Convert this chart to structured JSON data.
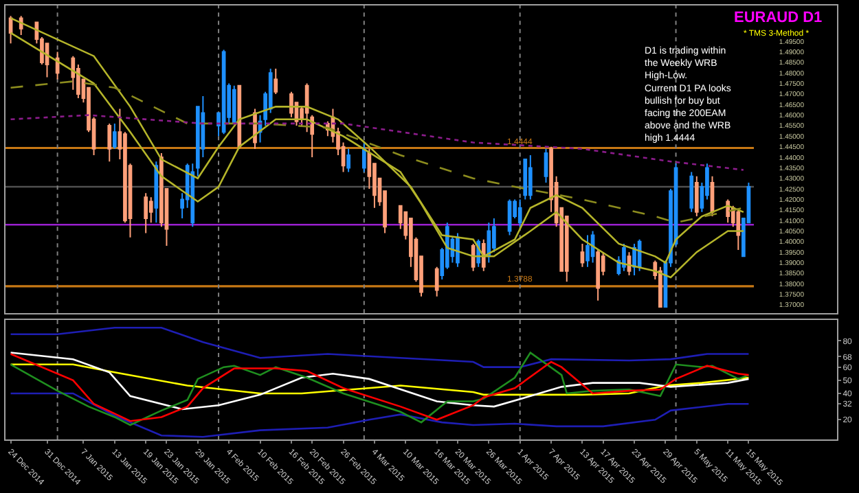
{
  "chart_data": [
    {
      "type": "candlestick",
      "title": "EURAUD D1",
      "subtitle": "* TMS 3-Method *",
      "annotations": [
        "D1 is trading within\nthe Weekly WRB\nHigh-Low.\nCurrent D1 PA looks\nbullish for buy but\nfacing the 200EAM\nabove and the WRB\nhigh 1.4444"
      ],
      "x": [
        "2014-12-24",
        "2014-12-26",
        "2014-12-29",
        "2014-12-30",
        "2014-12-31",
        "2015-01-02",
        "2015-01-05",
        "2015-01-06",
        "2015-01-07",
        "2015-01-08",
        "2015-01-09",
        "2015-01-12",
        "2015-01-13",
        "2015-01-14",
        "2015-01-15",
        "2015-01-16",
        "2015-01-19",
        "2015-01-20",
        "2015-01-21",
        "2015-01-22",
        "2015-01-23",
        "2015-01-26",
        "2015-01-27",
        "2015-01-28",
        "2015-01-29",
        "2015-01-30",
        "2015-02-02",
        "2015-02-03",
        "2015-02-04",
        "2015-02-05",
        "2015-02-06",
        "2015-02-09",
        "2015-02-10",
        "2015-02-11",
        "2015-02-12",
        "2015-02-13",
        "2015-02-16",
        "2015-02-17",
        "2015-02-18",
        "2015-02-19",
        "2015-02-20",
        "2015-02-23",
        "2015-02-24",
        "2015-02-25",
        "2015-02-26",
        "2015-02-27",
        "2015-03-02",
        "2015-03-03",
        "2015-03-04",
        "2015-03-05",
        "2015-03-06",
        "2015-03-09",
        "2015-03-10",
        "2015-03-11",
        "2015-03-12",
        "2015-03-13",
        "2015-03-16",
        "2015-03-17",
        "2015-03-18",
        "2015-03-19",
        "2015-03-20",
        "2015-03-23",
        "2015-03-24",
        "2015-03-25",
        "2015-03-26",
        "2015-03-27",
        "2015-03-30",
        "2015-03-31",
        "2015-04-01",
        "2015-04-02",
        "2015-04-03",
        "2015-04-06",
        "2015-04-07",
        "2015-04-08",
        "2015-04-09",
        "2015-04-10",
        "2015-04-13",
        "2015-04-14",
        "2015-04-15",
        "2015-04-16",
        "2015-04-17",
        "2015-04-20",
        "2015-04-21",
        "2015-04-22",
        "2015-04-23",
        "2015-04-24",
        "2015-04-27",
        "2015-04-28",
        "2015-04-29",
        "2015-04-30",
        "2015-05-01",
        "2015-05-04",
        "2015-05-05",
        "2015-05-06",
        "2015-05-07",
        "2015-05-08",
        "2015-05-11",
        "2015-05-12",
        "2015-05-13",
        "2015-05-14",
        "2015-05-15"
      ],
      "ohlc": [
        [
          1.506,
          1.507,
          1.494,
          1.499
        ],
        [
          1.506,
          1.507,
          1.498,
          1.501
        ],
        [
          1.504,
          1.504,
          1.494,
          1.496
        ],
        [
          1.496,
          1.497,
          1.484,
          1.485
        ],
        [
          1.494,
          1.494,
          1.478,
          1.484
        ],
        [
          1.487,
          1.49,
          1.477,
          1.48
        ],
        [
          1.487,
          1.488,
          1.472,
          1.478
        ],
        [
          1.482,
          1.484,
          1.468,
          1.47
        ],
        [
          1.477,
          1.477,
          1.466,
          1.468
        ],
        [
          1.473,
          1.473,
          1.452,
          1.453
        ],
        [
          1.458,
          1.459,
          1.441,
          1.444
        ],
        [
          1.455,
          1.456,
          1.438,
          1.444
        ],
        [
          1.445,
          1.456,
          1.444,
          1.452
        ],
        [
          1.452,
          1.463,
          1.439,
          1.444
        ],
        [
          1.451,
          1.452,
          1.409,
          1.41
        ],
        [
          1.436,
          1.437,
          1.402,
          1.411
        ],
        [
          1.421,
          1.423,
          1.404,
          1.411
        ],
        [
          1.419,
          1.421,
          1.409,
          1.414
        ],
        [
          1.416,
          1.438,
          1.409,
          1.436
        ],
        [
          1.44,
          1.442,
          1.407,
          1.409
        ],
        [
          1.425,
          1.425,
          1.398,
          1.406
        ],
        [
          1.416,
          1.423,
          1.411,
          1.42
        ],
        [
          1.42,
          1.437,
          1.416,
          1.436
        ],
        [
          1.409,
          1.437,
          1.407,
          1.433
        ],
        [
          1.435,
          1.464,
          1.431,
          1.464
        ],
        [
          1.444,
          1.469,
          1.44,
          1.461
        ],
        [
          1.455,
          1.461,
          1.45,
          1.461
        ],
        [
          1.452,
          1.491,
          1.451,
          1.49
        ],
        [
          1.459,
          1.475,
          1.456,
          1.474
        ],
        [
          1.456,
          1.474,
          1.456,
          1.472
        ],
        [
          1.474,
          1.474,
          1.444,
          1.445
        ],
        [
          1.461,
          1.463,
          1.444,
          1.447
        ],
        [
          1.452,
          1.46,
          1.447,
          1.457
        ],
        [
          1.458,
          1.471,
          1.455,
          1.47
        ],
        [
          1.463,
          1.482,
          1.461,
          1.48
        ],
        [
          1.477,
          1.482,
          1.47,
          1.471
        ],
        [
          1.47,
          1.471,
          1.459,
          1.461
        ],
        [
          1.466,
          1.466,
          1.455,
          1.457
        ],
        [
          1.463,
          1.464,
          1.455,
          1.458
        ],
        [
          1.474,
          1.475,
          1.452,
          1.461
        ],
        [
          1.459,
          1.46,
          1.44,
          1.451
        ],
        [
          1.456,
          1.457,
          1.45,
          1.453
        ],
        [
          1.459,
          1.463,
          1.447,
          1.45
        ],
        [
          1.452,
          1.454,
          1.441,
          1.444
        ],
        [
          1.445,
          1.447,
          1.433,
          1.436
        ],
        [
          1.435,
          1.444,
          1.433,
          1.441
        ],
        [
          1.435,
          1.447,
          1.433,
          1.444
        ],
        [
          1.442,
          1.444,
          1.425,
          1.431
        ],
        [
          1.437,
          1.437,
          1.416,
          1.422
        ],
        [
          1.43,
          1.43,
          1.417,
          1.419
        ],
        [
          1.424,
          1.424,
          1.404,
          1.407
        ],
        [
          1.417,
          1.417,
          1.406,
          1.409
        ],
        [
          1.414,
          1.414,
          1.401,
          1.403
        ],
        [
          1.411,
          1.411,
          1.388,
          1.393
        ],
        [
          1.401,
          1.402,
          1.381,
          1.382
        ],
        [
          1.393,
          1.393,
          1.374,
          1.376
        ],
        [
          1.387,
          1.388,
          1.374,
          1.377
        ],
        [
          1.384,
          1.397,
          1.382,
          1.396
        ],
        [
          1.388,
          1.409,
          1.387,
          1.407
        ],
        [
          1.393,
          1.402,
          1.39,
          1.401
        ],
        [
          1.39,
          1.404,
          1.388,
          1.402
        ],
        [
          1.398,
          1.399,
          1.386,
          1.388
        ],
        [
          1.39,
          1.401,
          1.388,
          1.4
        ],
        [
          1.399,
          1.401,
          1.386,
          1.388
        ],
        [
          1.393,
          1.409,
          1.39,
          1.405
        ],
        [
          1.397,
          1.411,
          1.395,
          1.407
        ],
        [
          1.405,
          1.42,
          1.403,
          1.419
        ],
        [
          1.412,
          1.42,
          1.411,
          1.419
        ],
        [
          1.409,
          1.42,
          1.407,
          1.416
        ],
        [
          1.422,
          1.439,
          1.42,
          1.439
        ],
        [
          1.422,
          1.441,
          1.42,
          1.435
        ],
        [
          1.431,
          1.444,
          1.428,
          1.442
        ],
        [
          1.444,
          1.445,
          1.414,
          1.42
        ],
        [
          1.428,
          1.431,
          1.407,
          1.409
        ],
        [
          1.416,
          1.416,
          1.386,
          1.386
        ],
        [
          1.412,
          1.412,
          1.381,
          1.386
        ],
        [
          1.395,
          1.399,
          1.388,
          1.39
        ],
        [
          1.391,
          1.403,
          1.388,
          1.398
        ],
        [
          1.393,
          1.405,
          1.39,
          1.403
        ],
        [
          1.395,
          1.396,
          1.372,
          1.378
        ],
        [
          1.393,
          1.395,
          1.384,
          1.386
        ],
        [
          1.385,
          1.393,
          1.384,
          1.391
        ],
        [
          1.388,
          1.399,
          1.386,
          1.397
        ],
        [
          1.393,
          1.395,
          1.384,
          1.386
        ],
        [
          1.388,
          1.399,
          1.384,
          1.397
        ],
        [
          1.388,
          1.401,
          1.386,
          1.4
        ],
        [
          1.39,
          1.391,
          1.382,
          1.384
        ],
        [
          1.386,
          1.388,
          1.369,
          1.369
        ],
        [
          1.369,
          1.391,
          1.369,
          1.39
        ],
        [
          1.39,
          1.425,
          1.388,
          1.424
        ],
        [
          1.399,
          1.437,
          1.398,
          1.435
        ],
        [
          1.416,
          1.433,
          1.414,
          1.431
        ],
        [
          1.428,
          1.431,
          1.412,
          1.414
        ],
        [
          1.416,
          1.428,
          1.414,
          1.426
        ],
        [
          1.422,
          1.437,
          1.42,
          1.435
        ],
        [
          1.428,
          1.431,
          1.412,
          1.414
        ],
        [
          1.419,
          1.42,
          1.409,
          1.412
        ],
        [
          1.416,
          1.417,
          1.407,
          1.409
        ],
        [
          1.414,
          1.415,
          1.396,
          1.403
        ],
        [
          1.393,
          1.411,
          1.393,
          1.411
        ],
        [
          1.409,
          1.428,
          1.409,
          1.426
        ]
      ],
      "colors": [
        "#ffa07a",
        "#ffa07a",
        "#ffa07a",
        "#ffa07a",
        "#ffa07a",
        "#ffa07a",
        "#ffa07a",
        "#ffa07a",
        "#ffa07a",
        "#ffa07a",
        "#ffa07a",
        "#ffa07a",
        "#1e90ff",
        "#ffa07a",
        "#ffa07a",
        "#ffa07a",
        "#ffa07a",
        "#ffa07a",
        "#1e90ff",
        "#ffa07a",
        "#ffa07a",
        "#1e90ff",
        "#1e90ff",
        "#1e90ff",
        "#1e90ff",
        "#1e90ff",
        "#1e90ff",
        "#1e90ff",
        "#1e90ff",
        "#1e90ff",
        "#ffa07a",
        "#ffa07a",
        "#1e90ff",
        "#1e90ff",
        "#1e90ff",
        "#ffa07a",
        "#ffa07a",
        "#ffa07a",
        "#ffa07a",
        "#ffa07a",
        "#ffa07a",
        "#ffa07a",
        "#ffa07a",
        "#ffa07a",
        "#ffa07a",
        "#1e90ff",
        "#1e90ff",
        "#ffa07a",
        "#ffa07a",
        "#ffa07a",
        "#ffa07a",
        "#ffa07a",
        "#ffa07a",
        "#ffa07a",
        "#ffa07a",
        "#ffa07a",
        "#ffa07a",
        "#1e90ff",
        "#1e90ff",
        "#1e90ff",
        "#1e90ff",
        "#ffa07a",
        "#1e90ff",
        "#ffa07a",
        "#1e90ff",
        "#1e90ff",
        "#1e90ff",
        "#1e90ff",
        "#1e90ff",
        "#1e90ff",
        "#1e90ff",
        "#1e90ff",
        "#ffa07a",
        "#ffa07a",
        "#ffa07a",
        "#ffa07a",
        "#ffa07a",
        "#1e90ff",
        "#1e90ff",
        "#ffa07a",
        "#ffa07a",
        "#1e90ff",
        "#1e90ff",
        "#ffa07a",
        "#1e90ff",
        "#1e90ff",
        "#ffa07a",
        "#ffa07a",
        "#1e90ff",
        "#1e90ff",
        "#1e90ff",
        "#1e90ff",
        "#ffa07a",
        "#1e90ff",
        "#1e90ff",
        "#ffa07a",
        "#ffa07a",
        "#ffa07a",
        "#ffa07a",
        "#1e90ff",
        "#1e90ff"
      ],
      "series": [
        {
          "type": "line",
          "color": "#b5b52a",
          "line_style": "solid",
          "x": [
            "2014-12-24",
            "2015-01-09",
            "2015-01-16",
            "2015-01-22",
            "2015-01-29",
            "2015-02-02",
            "2015-02-06",
            "2015-02-13",
            "2015-02-19",
            "2015-02-25",
            "2015-03-03",
            "2015-03-11",
            "2015-03-17",
            "2015-03-23",
            "2015-03-25",
            "2015-03-31",
            "2015-04-03",
            "2015-04-08",
            "2015-04-13",
            "2015-04-20",
            "2015-04-27",
            "2015-04-29",
            "2015-05-01",
            "2015-05-06",
            "2015-05-11",
            "2015-05-14"
          ],
          "values": [
            1.506,
            1.488,
            1.464,
            1.439,
            1.43,
            1.445,
            1.458,
            1.464,
            1.464,
            1.458,
            1.445,
            1.426,
            1.403,
            1.401,
            1.393,
            1.401,
            1.416,
            1.422,
            1.416,
            1.399,
            1.393,
            1.39,
            1.401,
            1.412,
            1.417,
            1.414
          ]
        },
        {
          "type": "line",
          "color": "#b5b52a",
          "line_style": "solid",
          "x": [
            "2014-12-24",
            "2015-01-09",
            "2015-01-16",
            "2015-01-22",
            "2015-01-29",
            "2015-02-02",
            "2015-02-06",
            "2015-02-13",
            "2015-02-19",
            "2015-02-26",
            "2015-03-09",
            "2015-03-13",
            "2015-03-18",
            "2015-03-23",
            "2015-03-27",
            "2015-04-03",
            "2015-04-08",
            "2015-04-13",
            "2015-04-20",
            "2015-04-27",
            "2015-04-30",
            "2015-05-05",
            "2015-05-11",
            "2015-05-14"
          ],
          "values": [
            1.499,
            1.475,
            1.452,
            1.431,
            1.419,
            1.426,
            1.445,
            1.458,
            1.458,
            1.45,
            1.433,
            1.418,
            1.397,
            1.393,
            1.393,
            1.405,
            1.414,
            1.401,
            1.39,
            1.386,
            1.383,
            1.395,
            1.405,
            1.405
          ]
        },
        {
          "type": "line",
          "color": "#8c8c1e",
          "line_style": "dashed",
          "x": [
            "2014-12-24",
            "2015-01-05",
            "2015-01-13",
            "2015-01-27",
            "2015-02-10",
            "2015-02-23",
            "2015-03-09",
            "2015-03-23",
            "2015-03-31",
            "2015-04-13",
            "2015-04-27",
            "2015-05-01",
            "2015-05-14"
          ],
          "values": [
            1.473,
            1.476,
            1.473,
            1.456,
            1.456,
            1.454,
            1.441,
            1.43,
            1.426,
            1.42,
            1.412,
            1.409,
            1.416
          ]
        },
        {
          "type": "line",
          "color": "#8b1c8b",
          "line_style": "dotted",
          "x": [
            "2014-12-24",
            "2015-01-08",
            "2015-01-30",
            "2015-02-26",
            "2015-03-23",
            "2015-04-13",
            "2015-04-30",
            "2015-05-14"
          ],
          "values": [
            1.458,
            1.46,
            1.456,
            1.456,
            1.447,
            1.444,
            1.438,
            1.434
          ]
        }
      ],
      "xlim": [
        "2014-12-23",
        "2015-06-01"
      ],
      "ylim": [
        1.366,
        1.512
      ],
      "yticks": [
        {
          "value": 1.495,
          "label": "1.49500"
        },
        {
          "value": 1.49,
          "label": "1.49000"
        },
        {
          "value": 1.485,
          "label": "1.48500"
        },
        {
          "value": 1.48,
          "label": "1.48000"
        },
        {
          "value": 1.475,
          "label": "1.47500"
        },
        {
          "value": 1.47,
          "label": "1.47000"
        },
        {
          "value": 1.465,
          "label": "1.46500"
        },
        {
          "value": 1.46,
          "label": "1.46000"
        },
        {
          "value": 1.455,
          "label": "1.45500"
        },
        {
          "value": 1.45,
          "label": "1.45000"
        },
        {
          "value": 1.445,
          "label": "1.44500"
        },
        {
          "value": 1.44,
          "label": "1.44000"
        },
        {
          "value": 1.435,
          "label": "1.43500"
        },
        {
          "value": 1.43,
          "label": "1.43000"
        },
        {
          "value": 1.425,
          "label": "1.42500"
        },
        {
          "value": 1.42,
          "label": "1.42000"
        },
        {
          "value": 1.415,
          "label": "1.41500"
        },
        {
          "value": 1.41,
          "label": "1.41000"
        },
        {
          "value": 1.405,
          "label": "1.40500"
        },
        {
          "value": 1.4,
          "label": "1.40000"
        },
        {
          "value": 1.395,
          "label": "1.39500"
        },
        {
          "value": 1.39,
          "label": "1.39000"
        },
        {
          "value": 1.385,
          "label": "1.38500"
        },
        {
          "value": 1.38,
          "label": "1.38000"
        },
        {
          "value": 1.375,
          "label": "1.37500"
        },
        {
          "value": 1.37,
          "label": "1.37000"
        }
      ],
      "tick_labels": "y",
      "ref_lines": [
        {
          "axis": "y",
          "value": 1.4444,
          "label": "1.4444",
          "color": "#c87814"
        },
        {
          "axis": "y",
          "value": 1.3788,
          "label": "1.3788",
          "color": "#c87814"
        },
        {
          "axis": "y",
          "value": 1.408,
          "color": "#9a1fd0"
        },
        {
          "axis": "y",
          "value": 1.426,
          "color": "#505050"
        },
        {
          "axis": "x",
          "value": "2015-01-02",
          "color": "#808080",
          "line_style": "dotted"
        },
        {
          "axis": "x",
          "value": "2015-02-02",
          "color": "#808080",
          "line_style": "dotted"
        },
        {
          "axis": "x",
          "value": "2015-03-02",
          "color": "#808080",
          "line_style": "dotted"
        },
        {
          "axis": "x",
          "value": "2015-04-01",
          "color": "#808080",
          "line_style": "dotted"
        },
        {
          "axis": "x",
          "value": "2015-05-01",
          "color": "#808080",
          "line_style": "dotted"
        }
      ]
    },
    {
      "type": "line",
      "xlim": [
        "2014-12-23",
        "2015-06-01"
      ],
      "ylim": [
        5,
        96
      ],
      "yticks": [
        20,
        32,
        40,
        50,
        60,
        68,
        80
      ],
      "xticks": [
        {
          "value": "2014-12-24",
          "label": "24 Dec 2014"
        },
        {
          "value": "2014-12-31",
          "label": "31 Dec 2014"
        },
        {
          "value": "2015-01-07",
          "label": "7 Jan 2015"
        },
        {
          "value": "2015-01-13",
          "label": "13 Jan 2015"
        },
        {
          "value": "2015-01-19",
          "label": "19 Jan 2015"
        },
        {
          "value": "2015-01-23",
          "label": "23 Jan 2015"
        },
        {
          "value": "2015-01-29",
          "label": "29 Jan 2015"
        },
        {
          "value": "2015-02-04",
          "label": "4 Feb 2015"
        },
        {
          "value": "2015-02-10",
          "label": "10 Feb 2015"
        },
        {
          "value": "2015-02-16",
          "label": "16 Feb 2015"
        },
        {
          "value": "2015-02-20",
          "label": "20 Feb 2015"
        },
        {
          "value": "2015-02-26",
          "label": "26 Feb 2015"
        },
        {
          "value": "2015-03-04",
          "label": "4 Mar 2015"
        },
        {
          "value": "2015-03-10",
          "label": "10 Mar 2015"
        },
        {
          "value": "2015-03-16",
          "label": "16 Mar 2015"
        },
        {
          "value": "2015-03-20",
          "label": "20 Mar 2015"
        },
        {
          "value": "2015-03-26",
          "label": "26 Mar 2015"
        },
        {
          "value": "2015-04-01",
          "label": "1 Apr 2015"
        },
        {
          "value": "2015-04-07",
          "label": "7 Apr 2015"
        },
        {
          "value": "2015-04-13",
          "label": "13 Apr 2015"
        },
        {
          "value": "2015-04-17",
          "label": "17 Apr 2015"
        },
        {
          "value": "2015-04-23",
          "label": "23 Apr 2015"
        },
        {
          "value": "2015-04-29",
          "label": "29 Apr 2015"
        },
        {
          "value": "2015-05-05",
          "label": "5 May 2015"
        },
        {
          "value": "2015-05-11",
          "label": "11 May 2015"
        },
        {
          "value": "2015-05-15",
          "label": "15 May 2015"
        }
      ],
      "series": [
        {
          "color": "#1e1eb4",
          "x": [
            "2014-12-24",
            "2015-01-02",
            "2015-01-13",
            "2015-01-22",
            "2015-01-30",
            "2015-02-10",
            "2015-02-23",
            "2015-03-09",
            "2015-03-23",
            "2015-03-25",
            "2015-04-01",
            "2015-04-07",
            "2015-04-22",
            "2015-04-30",
            "2015-05-07",
            "2015-05-15"
          ],
          "values": [
            85,
            85,
            90,
            90,
            79,
            67,
            70,
            67,
            64,
            60,
            60,
            66,
            65,
            66,
            70,
            70
          ]
        },
        {
          "color": "#1e1eb4",
          "x": [
            "2014-12-24",
            "2015-01-05",
            "2015-01-13",
            "2015-01-22",
            "2015-01-30",
            "2015-02-10",
            "2015-02-23",
            "2015-03-03",
            "2015-03-09",
            "2015-03-17",
            "2015-03-23",
            "2015-03-31",
            "2015-04-08",
            "2015-04-17",
            "2015-04-27",
            "2015-04-30",
            "2015-05-11",
            "2015-05-15"
          ],
          "values": [
            40,
            40,
            23,
            8,
            7,
            12,
            14,
            20,
            24,
            18,
            16,
            17,
            15,
            15,
            20,
            27,
            32,
            32
          ]
        },
        {
          "color": "#ffff00",
          "x": [
            "2014-12-24",
            "2015-01-05",
            "2015-01-13",
            "2015-01-27",
            "2015-02-10",
            "2015-02-18",
            "2015-03-09",
            "2015-03-23",
            "2015-03-25",
            "2015-04-03",
            "2015-04-13",
            "2015-04-22",
            "2015-04-29",
            "2015-05-06",
            "2015-05-15"
          ],
          "values": [
            62,
            62,
            56,
            46,
            40,
            40,
            46,
            41,
            39,
            39,
            39,
            40,
            46,
            48,
            52
          ]
        },
        {
          "color": "#ffffff",
          "x": [
            "2014-12-24",
            "2015-01-05",
            "2015-01-12",
            "2015-01-16",
            "2015-01-26",
            "2015-02-02",
            "2015-02-10",
            "2015-02-18",
            "2015-02-24",
            "2015-03-03",
            "2015-03-16",
            "2015-03-23",
            "2015-03-27",
            "2015-04-03",
            "2015-04-09",
            "2015-04-15",
            "2015-04-24",
            "2015-04-30",
            "2015-05-11",
            "2015-05-15"
          ],
          "values": [
            71,
            66,
            56,
            38,
            28,
            31,
            39,
            52,
            55,
            51,
            34,
            31,
            30,
            38,
            45,
            48,
            48,
            45,
            48,
            51
          ]
        },
        {
          "color": "#1f8f1f",
          "x": [
            "2014-12-24",
            "2015-01-02",
            "2015-01-08",
            "2015-01-13",
            "2015-01-16",
            "2015-01-22",
            "2015-01-27",
            "2015-01-29",
            "2015-02-03",
            "2015-02-05",
            "2015-02-10",
            "2015-02-13",
            "2015-02-19",
            "2015-02-26",
            "2015-03-09",
            "2015-03-13",
            "2015-03-18",
            "2015-03-23",
            "2015-03-25",
            "2015-03-31",
            "2015-04-03",
            "2015-04-09",
            "2015-04-10",
            "2015-04-15",
            "2015-04-22",
            "2015-04-28",
            "2015-05-01",
            "2015-05-06",
            "2015-05-08",
            "2015-05-13",
            "2015-05-15"
          ],
          "values": [
            62,
            42,
            30,
            22,
            16,
            27,
            35,
            51,
            60,
            61,
            54,
            60,
            52,
            40,
            26,
            18,
            34,
            34,
            36,
            52,
            71,
            54,
            40,
            42,
            43,
            38,
            62,
            60,
            61,
            51,
            54
          ]
        },
        {
          "color": "#ff0000",
          "x": [
            "2014-12-24",
            "2015-01-05",
            "2015-01-09",
            "2015-01-16",
            "2015-01-22",
            "2015-01-27",
            "2015-01-30",
            "2015-02-05",
            "2015-02-13",
            "2015-02-19",
            "2015-02-26",
            "2015-03-09",
            "2015-03-16",
            "2015-03-23",
            "2015-03-25",
            "2015-03-31",
            "2015-04-07",
            "2015-04-09",
            "2015-04-15",
            "2015-04-22",
            "2015-04-28",
            "2015-05-01",
            "2015-05-07",
            "2015-05-13",
            "2015-05-15"
          ],
          "values": [
            70,
            50,
            32,
            19,
            22,
            30,
            44,
            59,
            59,
            57,
            44,
            30,
            20,
            31,
            37,
            44,
            64,
            60,
            40,
            42,
            43,
            51,
            61,
            55,
            54
          ]
        }
      ],
      "ref_lines": [
        {
          "axis": "x",
          "value": "2015-01-02",
          "color": "#808080",
          "line_style": "dotted"
        },
        {
          "axis": "x",
          "value": "2015-02-02",
          "color": "#808080",
          "line_style": "dotted"
        },
        {
          "axis": "x",
          "value": "2015-03-02",
          "color": "#808080",
          "line_style": "dotted"
        },
        {
          "axis": "x",
          "value": "2015-04-01",
          "color": "#808080",
          "line_style": "dotted"
        },
        {
          "axis": "x",
          "value": "2015-05-01",
          "color": "#808080",
          "line_style": "dotted"
        }
      ]
    }
  ]
}
